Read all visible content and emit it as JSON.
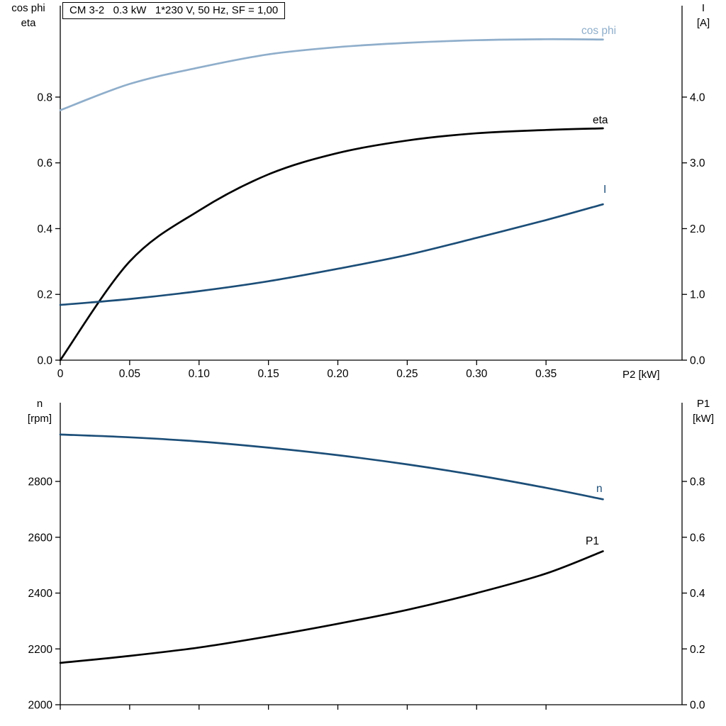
{
  "colors": {
    "light_blue": "#8FAECB",
    "dark_blue": "#1C4E78",
    "black": "#000000",
    "axis": "#000000",
    "background": "#FFFFFF"
  },
  "chart_data": [
    {
      "type": "line",
      "title": "CM 3-2   0.3 kW   1*230 V, 50 Hz, SF = 1,00",
      "x": [
        0,
        0.05,
        0.1,
        0.15,
        0.2,
        0.25,
        0.3,
        0.35,
        0.391
      ],
      "x_axis": {
        "title": "P2 [kW]",
        "lim": [
          0,
          0.448
        ],
        "ticks": [
          0,
          0.05,
          0.1,
          0.15,
          0.2,
          0.25,
          0.3,
          0.35
        ],
        "tick_labels": [
          "0",
          "0.05",
          "0.10",
          "0.15",
          "0.20",
          "0.25",
          "0.30",
          "0.35"
        ]
      },
      "left_axis": {
        "title_line1": "cos phi",
        "title_line2": "eta",
        "lim": [
          0,
          1.078
        ],
        "ticks": [
          0,
          0.2,
          0.4,
          0.6,
          0.8
        ],
        "tick_labels": [
          "0.0",
          "0.2",
          "0.4",
          "0.6",
          "0.8"
        ]
      },
      "right_axis": {
        "title_line1": "I",
        "title_line2": "[A]",
        "lim": [
          0,
          5.39
        ],
        "ticks": [
          0,
          1,
          2,
          3,
          4
        ],
        "tick_labels": [
          "0.0",
          "1.0",
          "2.0",
          "3.0",
          "4.0"
        ]
      },
      "series": [
        {
          "name": "cos phi",
          "axis": "left",
          "color": "light_blue",
          "values": [
            0.76,
            0.84,
            0.89,
            0.93,
            0.952,
            0.965,
            0.973,
            0.976,
            0.975
          ]
        },
        {
          "name": "eta",
          "axis": "left",
          "color": "black",
          "values": [
            0.0,
            0.3,
            0.455,
            0.565,
            0.63,
            0.668,
            0.69,
            0.7,
            0.705
          ]
        },
        {
          "name": "I",
          "axis": "right",
          "color": "dark_blue",
          "values": [
            0.84,
            0.93,
            1.05,
            1.2,
            1.39,
            1.6,
            1.86,
            2.13,
            2.37
          ]
        }
      ]
    },
    {
      "type": "line",
      "title": "",
      "x": [
        0,
        0.05,
        0.1,
        0.15,
        0.2,
        0.25,
        0.3,
        0.35,
        0.391
      ],
      "x_axis": {
        "title": "",
        "lim": [
          0,
          0.448
        ],
        "ticks": [
          0,
          0.05,
          0.1,
          0.15,
          0.2,
          0.25,
          0.3,
          0.35
        ],
        "tick_labels": []
      },
      "left_axis": {
        "title_line1": "n",
        "title_line2": "[rpm]",
        "lim": [
          2000,
          3082
        ],
        "ticks": [
          2000,
          2200,
          2400,
          2600,
          2800
        ],
        "tick_labels": [
          "2000",
          "2200",
          "2400",
          "2600",
          "2800"
        ]
      },
      "right_axis": {
        "title_line1": "P1",
        "title_line2": "[kW]",
        "lim": [
          0,
          1.082
        ],
        "ticks": [
          0,
          0.2,
          0.4,
          0.6,
          0.8
        ],
        "tick_labels": [
          "0.0",
          "0.2",
          "0.4",
          "0.6",
          "0.8"
        ]
      },
      "series": [
        {
          "name": "n",
          "axis": "left",
          "color": "dark_blue",
          "values": [
            2968,
            2958,
            2943,
            2921,
            2894,
            2861,
            2822,
            2777,
            2736
          ]
        },
        {
          "name": "P1",
          "axis": "right",
          "color": "black",
          "values": [
            0.15,
            0.175,
            0.205,
            0.245,
            0.29,
            0.34,
            0.4,
            0.47,
            0.55
          ]
        }
      ]
    }
  ]
}
